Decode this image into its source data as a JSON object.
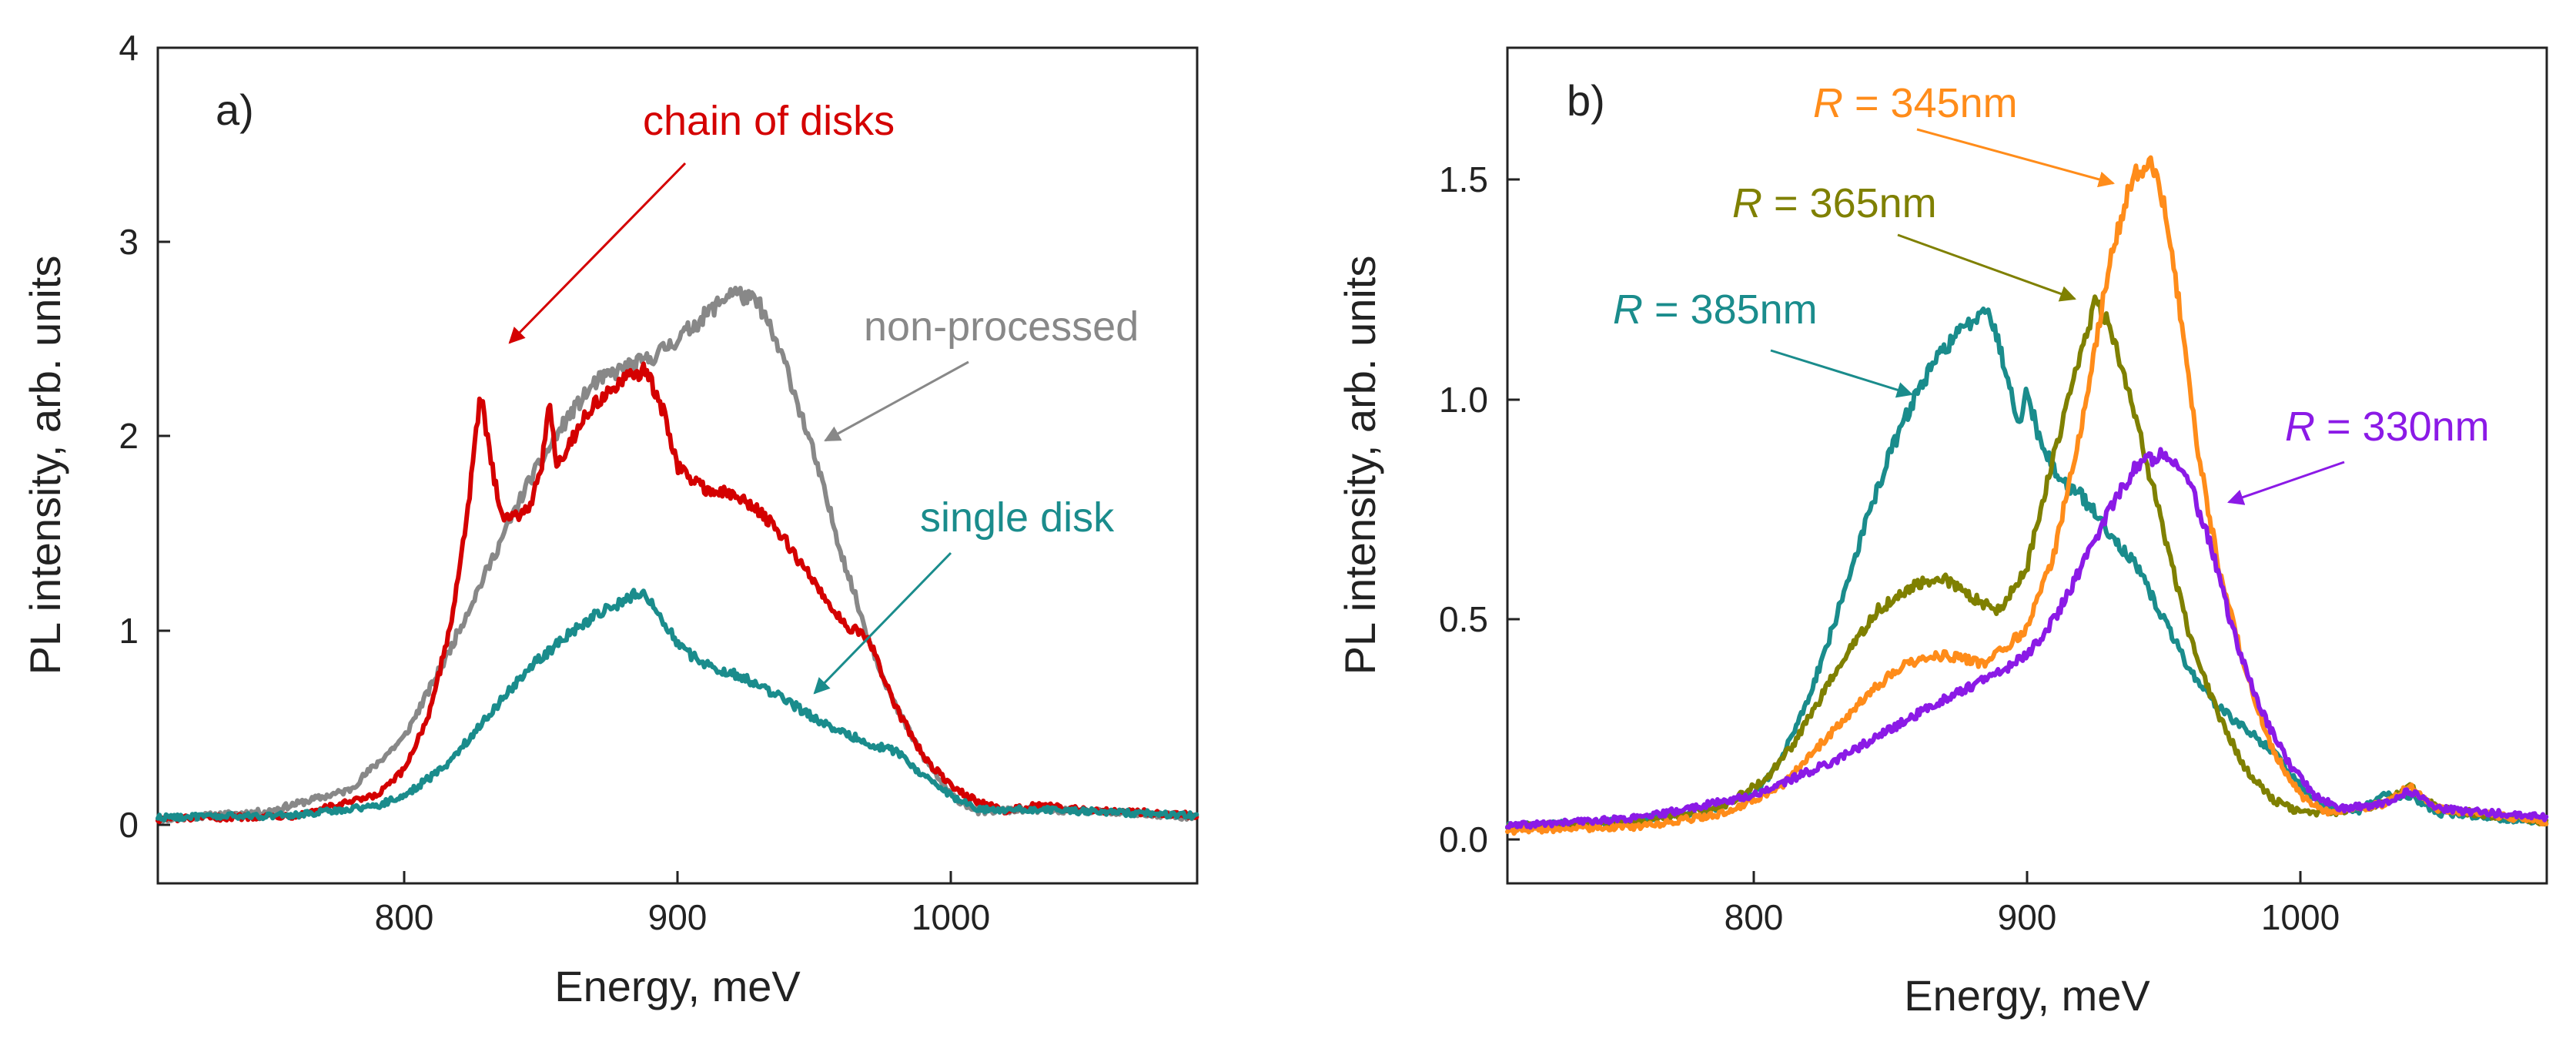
{
  "chart_data": [
    {
      "panel": "a)",
      "type": "line",
      "xlabel": "Energy, meV",
      "ylabel": "PL intensity, arb. units",
      "xlim": [
        710,
        1090
      ],
      "ylim": [
        -0.3,
        4.0
      ],
      "xticks": [
        800,
        900,
        1000
      ],
      "xtick_labels": [
        "800",
        "900",
        "1000"
      ],
      "yticks": [
        0,
        1,
        2,
        3,
        4
      ],
      "ytick_labels": [
        "0",
        "1",
        "2",
        "3",
        "4"
      ],
      "grid": false,
      "series": [
        {
          "id": "non-processed",
          "name": "non-processed",
          "color": "#888888",
          "x": [
            710,
            750,
            780,
            800,
            815,
            830,
            845,
            860,
            870,
            880,
            890,
            900,
            910,
            920,
            930,
            940,
            950,
            960,
            970,
            980,
            990,
            1000,
            1010,
            1030,
            1050,
            1090
          ],
          "y": [
            0.03,
            0.07,
            0.18,
            0.45,
            0.85,
            1.3,
            1.75,
            2.1,
            2.28,
            2.35,
            2.4,
            2.5,
            2.62,
            2.75,
            2.68,
            2.35,
            1.9,
            1.4,
            0.95,
            0.6,
            0.35,
            0.15,
            0.07,
            0.08,
            0.07,
            0.04
          ]
        },
        {
          "id": "chain-of-disks",
          "name": "chain of disks",
          "color": "#d40000",
          "x": [
            710,
            760,
            790,
            800,
            810,
            818,
            824,
            828,
            832,
            836,
            840,
            846,
            850,
            853,
            856,
            860,
            866,
            872,
            880,
            888,
            895,
            900,
            905,
            912,
            920,
            930,
            940,
            950,
            960,
            970,
            980,
            990,
            1000,
            1010,
            1020,
            1030,
            1050,
            1090
          ],
          "y": [
            0.03,
            0.05,
            0.15,
            0.28,
            0.6,
            1.1,
            1.7,
            2.22,
            1.85,
            1.6,
            1.58,
            1.65,
            1.8,
            2.2,
            1.85,
            1.95,
            2.1,
            2.2,
            2.28,
            2.35,
            2.12,
            1.85,
            1.78,
            1.72,
            1.7,
            1.62,
            1.45,
            1.25,
            1.05,
            0.95,
            0.6,
            0.35,
            0.2,
            0.12,
            0.07,
            0.1,
            0.08,
            0.05
          ]
        },
        {
          "id": "single-disk",
          "name": "single disk",
          "color": "#1a8c8c",
          "x": [
            710,
            760,
            790,
            800,
            815,
            830,
            845,
            860,
            870,
            880,
            886,
            892,
            898,
            902,
            910,
            920,
            930,
            940,
            950,
            960,
            970,
            980,
            990,
            1000,
            1010,
            1030,
            1050,
            1090
          ],
          "y": [
            0.04,
            0.05,
            0.1,
            0.15,
            0.3,
            0.55,
            0.8,
            0.98,
            1.08,
            1.15,
            1.2,
            1.12,
            0.98,
            0.9,
            0.83,
            0.78,
            0.72,
            0.64,
            0.55,
            0.48,
            0.42,
            0.38,
            0.25,
            0.15,
            0.08,
            0.08,
            0.07,
            0.05
          ]
        }
      ],
      "annotations": [
        {
          "id": "chain",
          "text": "chain of disks",
          "color": "#d40000"
        },
        {
          "id": "nonproc",
          "text": "non-processed",
          "color": "#888888"
        },
        {
          "id": "single",
          "text": "single disk",
          "color": "#1a8c8c"
        }
      ]
    },
    {
      "panel": "b)",
      "type": "line",
      "xlabel": "Energy, meV",
      "ylabel": "PL intensity, arb. units",
      "xlim": [
        710,
        1090
      ],
      "ylim": [
        -0.1,
        1.8
      ],
      "xticks": [
        800,
        900,
        1000
      ],
      "xtick_labels": [
        "800",
        "900",
        "1000"
      ],
      "yticks": [
        0.0,
        0.5,
        1.0,
        1.5
      ],
      "ytick_labels": [
        "0.0",
        "0.5",
        "1.0",
        "1.5"
      ],
      "grid": false,
      "series": [
        {
          "id": "r385",
          "name": "R = 385nm",
          "color": "#1a8c8c",
          "x": [
            710,
            750,
            780,
            800,
            810,
            820,
            830,
            840,
            850,
            860,
            870,
            880,
            885,
            890,
            897,
            900,
            905,
            912,
            920,
            930,
            940,
            950,
            960,
            970,
            980,
            990,
            1000,
            1010,
            1020,
            1030,
            1040,
            1050,
            1090
          ],
          "y": [
            0.03,
            0.04,
            0.06,
            0.1,
            0.18,
            0.32,
            0.5,
            0.7,
            0.88,
            1.02,
            1.12,
            1.18,
            1.22,
            1.12,
            0.95,
            1.02,
            0.9,
            0.82,
            0.78,
            0.7,
            0.62,
            0.5,
            0.38,
            0.3,
            0.25,
            0.2,
            0.12,
            0.07,
            0.06,
            0.1,
            0.1,
            0.06,
            0.04
          ]
        },
        {
          "id": "r365",
          "name": "R = 365nm",
          "color": "#7f8000",
          "x": [
            710,
            760,
            790,
            805,
            815,
            830,
            845,
            860,
            870,
            880,
            890,
            900,
            910,
            920,
            925,
            930,
            940,
            950,
            960,
            970,
            980,
            990,
            1000,
            1010,
            1030,
            1040,
            1050,
            1090
          ],
          "y": [
            0.03,
            0.04,
            0.08,
            0.14,
            0.22,
            0.38,
            0.52,
            0.58,
            0.59,
            0.55,
            0.52,
            0.62,
            0.88,
            1.12,
            1.22,
            1.18,
            0.95,
            0.7,
            0.45,
            0.28,
            0.16,
            0.09,
            0.06,
            0.06,
            0.08,
            0.12,
            0.07,
            0.04
          ]
        },
        {
          "id": "r345",
          "name": "R = 345nm",
          "color": "#ff8c1a",
          "x": [
            710,
            760,
            790,
            810,
            825,
            840,
            855,
            870,
            885,
            900,
            910,
            920,
            930,
            938,
            945,
            950,
            956,
            962,
            970,
            980,
            990,
            1000,
            1010,
            1030,
            1040,
            1050,
            1090
          ],
          "y": [
            0.02,
            0.03,
            0.06,
            0.12,
            0.22,
            0.32,
            0.4,
            0.42,
            0.4,
            0.48,
            0.65,
            0.95,
            1.3,
            1.5,
            1.55,
            1.45,
            1.2,
            0.9,
            0.62,
            0.38,
            0.2,
            0.1,
            0.06,
            0.08,
            0.12,
            0.07,
            0.04
          ]
        },
        {
          "id": "r330",
          "name": "R = 330nm",
          "color": "#8b1ae6",
          "x": [
            710,
            760,
            800,
            830,
            850,
            870,
            890,
            900,
            910,
            920,
            930,
            940,
            950,
            955,
            960,
            968,
            975,
            985,
            995,
            1005,
            1015,
            1030,
            1040,
            1050,
            1090
          ],
          "y": [
            0.03,
            0.05,
            0.1,
            0.18,
            0.25,
            0.32,
            0.38,
            0.42,
            0.5,
            0.62,
            0.75,
            0.85,
            0.88,
            0.86,
            0.8,
            0.65,
            0.48,
            0.3,
            0.18,
            0.1,
            0.07,
            0.08,
            0.11,
            0.07,
            0.05
          ]
        }
      ],
      "annotations": [
        {
          "id": "a345",
          "prefix": "R",
          "text": " = 345nm",
          "color": "#ff8c1a"
        },
        {
          "id": "a365",
          "prefix": "R",
          "text": " = 365nm",
          "color": "#7f8000"
        },
        {
          "id": "a385",
          "prefix": "R",
          "text": " = 385nm",
          "color": "#1a8c8c"
        },
        {
          "id": "a330",
          "prefix": "R",
          "text": " = 330nm",
          "color": "#8b1ae6"
        }
      ]
    }
  ]
}
